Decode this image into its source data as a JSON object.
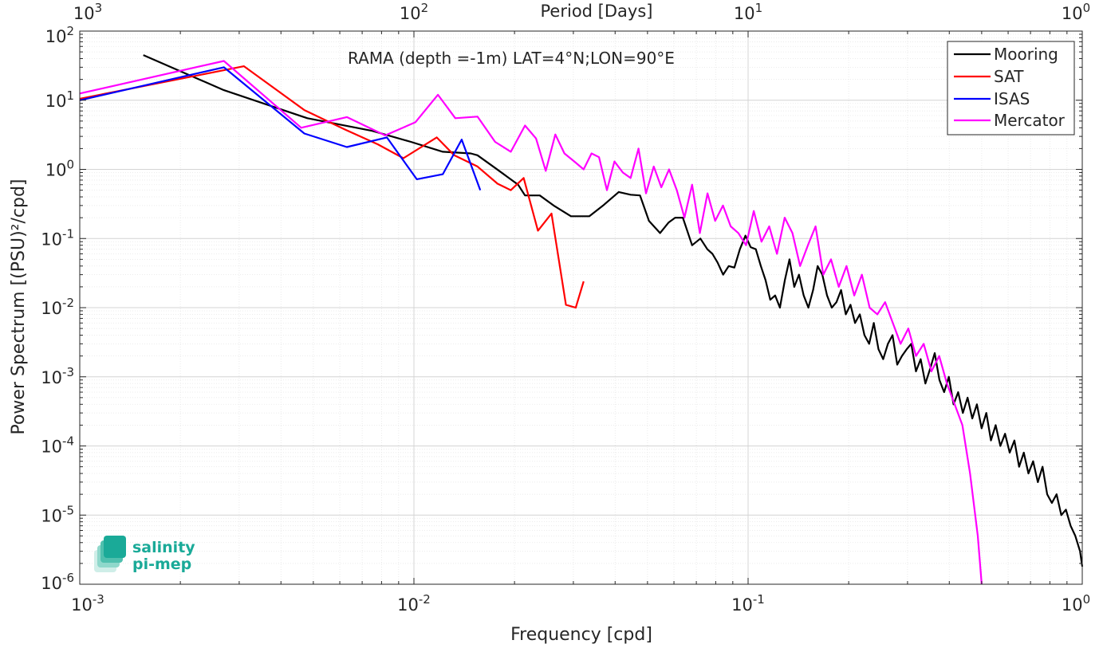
{
  "chart_data": {
    "type": "line",
    "title": "RAMA (depth =-1m) LAT=4°N;LON=90°E",
    "xlabel": "Frequency [cpd]",
    "ylabel": "Power Spectrum [(PSU)²/cpd]",
    "top_xlabel": "Period [Days]",
    "xscale": "log",
    "yscale": "log",
    "xlim": [
      0.001,
      1
    ],
    "ylim": [
      1e-06,
      100
    ],
    "grid": true,
    "legend_position": "top-right",
    "x_ticks": [
      {
        "base": "10",
        "exp": "-3",
        "value": 0.001
      },
      {
        "base": "10",
        "exp": "-2",
        "value": 0.01
      },
      {
        "base": "10",
        "exp": "-1",
        "value": 0.1
      },
      {
        "base": "10",
        "exp": "0",
        "value": 1
      }
    ],
    "y_ticks": [
      {
        "base": "10",
        "exp": "2",
        "value": 100
      },
      {
        "base": "10",
        "exp": "1",
        "value": 10
      },
      {
        "base": "10",
        "exp": "0",
        "value": 1
      },
      {
        "base": "10",
        "exp": "-1",
        "value": 0.1
      },
      {
        "base": "10",
        "exp": "-2",
        "value": 0.01
      },
      {
        "base": "10",
        "exp": "-3",
        "value": 0.001
      },
      {
        "base": "10",
        "exp": "-4",
        "value": 0.0001
      },
      {
        "base": "10",
        "exp": "-5",
        "value": 1e-05
      },
      {
        "base": "10",
        "exp": "-6",
        "value": 1e-06
      }
    ],
    "top_ticks": [
      {
        "base": "10",
        "exp": "3",
        "value": 0.001
      },
      {
        "base": "10",
        "exp": "2",
        "value": 0.01
      },
      {
        "base": "10",
        "exp": "1",
        "value": 0.1
      },
      {
        "base": "10",
        "exp": "0",
        "value": 1
      }
    ],
    "series": [
      {
        "name": "Mooring",
        "color": "#000000",
        "x": [
          0.00155,
          0.0027,
          0.0048,
          0.0075,
          0.0098,
          0.0122,
          0.0148,
          0.0155,
          0.0175,
          0.0205,
          0.0215,
          0.0238,
          0.0262,
          0.0295,
          0.0335,
          0.0368,
          0.041,
          0.0445,
          0.0475,
          0.0505,
          0.0545,
          0.0578,
          0.0605,
          0.0638,
          0.068,
          0.072,
          0.0755,
          0.0782,
          0.081,
          0.0842,
          0.0875,
          0.091,
          0.0945,
          0.0982,
          0.1018,
          0.1055,
          0.1092,
          0.1128,
          0.1165,
          0.1205,
          0.1245,
          0.1288,
          0.133,
          0.1375,
          0.142,
          0.1467,
          0.1515,
          0.1565,
          0.1615,
          0.1668,
          0.1723,
          0.178,
          0.1838,
          0.1898,
          0.196,
          0.2025,
          0.209,
          0.2159,
          0.223,
          0.2303,
          0.2378,
          0.2456,
          0.2537,
          0.262,
          0.2706,
          0.2795,
          0.2887,
          0.2981,
          0.3079,
          0.318,
          0.3285,
          0.3393,
          0.3504,
          0.3619,
          0.3738,
          0.386,
          0.3987,
          0.4118,
          0.4253,
          0.4393,
          0.4537,
          0.4686,
          0.4839,
          0.4998,
          0.5162,
          0.5331,
          0.5506,
          0.5687,
          0.5873,
          0.6066,
          0.6265,
          0.647,
          0.6683,
          0.6902,
          0.7129,
          0.7362,
          0.7604,
          0.7854,
          0.8111,
          0.8378,
          0.8653,
          0.8937,
          0.923,
          0.9533,
          0.9846,
          1.0
        ],
        "y": [
          45,
          14,
          5.5,
          3.6,
          2.5,
          1.8,
          1.7,
          1.6,
          1.05,
          0.6,
          0.42,
          0.42,
          0.3,
          0.21,
          0.21,
          0.3,
          0.47,
          0.43,
          0.42,
          0.18,
          0.12,
          0.17,
          0.2,
          0.2,
          0.08,
          0.1,
          0.07,
          0.06,
          0.045,
          0.03,
          0.04,
          0.038,
          0.07,
          0.11,
          0.075,
          0.07,
          0.04,
          0.025,
          0.013,
          0.015,
          0.01,
          0.025,
          0.05,
          0.02,
          0.03,
          0.015,
          0.01,
          0.018,
          0.04,
          0.03,
          0.015,
          0.01,
          0.012,
          0.018,
          0.008,
          0.011,
          0.006,
          0.008,
          0.004,
          0.003,
          0.006,
          0.0025,
          0.0018,
          0.003,
          0.004,
          0.0015,
          0.002,
          0.0025,
          0.003,
          0.0012,
          0.0018,
          0.0008,
          0.0013,
          0.0022,
          0.0009,
          0.0006,
          0.001,
          0.0004,
          0.0006,
          0.0003,
          0.0005,
          0.00025,
          0.0004,
          0.00018,
          0.0003,
          0.00012,
          0.0002,
          0.0001,
          0.00015,
          8e-05,
          0.00012,
          5e-05,
          8e-05,
          4e-05,
          6e-05,
          3e-05,
          5e-05,
          2e-05,
          1.5e-05,
          2e-05,
          1e-05,
          1.2e-05,
          7e-06,
          5e-06,
          3e-06,
          1.8e-06
        ]
      },
      {
        "name": "SAT",
        "color": "#ff0000",
        "x": [
          0.001,
          0.0031,
          0.0047,
          0.0062,
          0.0078,
          0.0093,
          0.0117,
          0.0132,
          0.0155,
          0.0178,
          0.0195,
          0.0213,
          0.0235,
          0.0258,
          0.0285,
          0.0305,
          0.0322
        ],
        "y": [
          10.5,
          31,
          7.2,
          3.8,
          2.3,
          1.45,
          2.9,
          1.6,
          1.1,
          0.62,
          0.5,
          0.75,
          0.13,
          0.23,
          0.011,
          0.01,
          0.024
        ]
      },
      {
        "name": "ISAS",
        "color": "#0000ff",
        "x": [
          0.001,
          0.0027,
          0.0047,
          0.0063,
          0.0083,
          0.0102,
          0.0122,
          0.0139,
          0.0158
        ],
        "y": [
          10,
          30,
          3.3,
          2.1,
          2.9,
          0.72,
          0.85,
          2.7,
          0.5
        ]
      },
      {
        "name": "Mercator",
        "color": "#ff00ff",
        "x": [
          0.001,
          0.0027,
          0.0046,
          0.0063,
          0.0082,
          0.0101,
          0.0118,
          0.0133,
          0.0155,
          0.0175,
          0.0195,
          0.0215,
          0.0232,
          0.0248,
          0.0265,
          0.0282,
          0.0302,
          0.0322,
          0.034,
          0.0358,
          0.0378,
          0.0398,
          0.0422,
          0.0445,
          0.047,
          0.0495,
          0.0522,
          0.055,
          0.058,
          0.0612,
          0.0645,
          0.068,
          0.0717,
          0.0756,
          0.0797,
          0.0841,
          0.0887,
          0.0935,
          0.0986,
          0.104,
          0.1097,
          0.1157,
          0.122,
          0.1287,
          0.1357,
          0.1431,
          0.151,
          0.1592,
          0.1679,
          0.1771,
          0.1868,
          0.197,
          0.2078,
          0.2191,
          0.2311,
          0.2437,
          0.2571,
          0.2711,
          0.2859,
          0.3016,
          0.318,
          0.3354,
          0.3538,
          0.3731,
          0.3935,
          0.415,
          0.4377,
          0.4616,
          0.4869,
          0.5
        ],
        "y": [
          12.5,
          37,
          4,
          5.7,
          3.1,
          4.8,
          12,
          5.5,
          5.8,
          2.5,
          1.8,
          4.3,
          2.8,
          0.95,
          3.2,
          1.7,
          1.3,
          1.0,
          1.7,
          1.5,
          0.5,
          1.3,
          0.9,
          0.75,
          2.0,
          0.45,
          1.1,
          0.55,
          1.0,
          0.5,
          0.2,
          0.6,
          0.12,
          0.45,
          0.18,
          0.3,
          0.15,
          0.12,
          0.08,
          0.25,
          0.09,
          0.15,
          0.06,
          0.2,
          0.12,
          0.04,
          0.08,
          0.15,
          0.03,
          0.05,
          0.02,
          0.04,
          0.015,
          0.03,
          0.01,
          0.008,
          0.012,
          0.006,
          0.003,
          0.005,
          0.002,
          0.003,
          0.0012,
          0.002,
          0.0008,
          0.0004,
          0.0002,
          4e-05,
          5e-06,
          1e-06
        ]
      }
    ]
  },
  "logo": {
    "line1": "salinity",
    "line2": "pi-mep",
    "color": "#1aaa98"
  }
}
